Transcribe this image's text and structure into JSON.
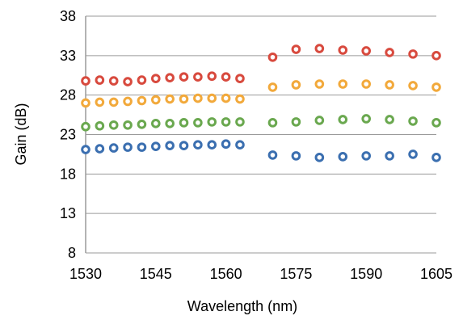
{
  "chart_data": {
    "type": "scatter",
    "title": "",
    "xlabel": "Wavelength (nm)",
    "ylabel": "Gain (dB)",
    "xlim": [
      1530,
      1605
    ],
    "ylim": [
      8,
      38
    ],
    "xticks": [
      1530,
      1545,
      1560,
      1575,
      1590,
      1605
    ],
    "yticks": [
      8,
      13,
      18,
      23,
      28,
      33,
      38
    ],
    "grid": "horizontal",
    "legend": "none",
    "x": [
      1530,
      1533,
      1536,
      1539,
      1542,
      1545,
      1548,
      1551,
      1554,
      1557,
      1560,
      1563,
      1570,
      1575,
      1580,
      1585,
      1590,
      1595,
      1600,
      1605
    ],
    "series": [
      {
        "color": "#d84a3e",
        "values": [
          29.8,
          29.9,
          29.8,
          29.7,
          29.9,
          30.1,
          30.2,
          30.3,
          30.3,
          30.4,
          30.3,
          30.1,
          32.8,
          33.8,
          33.9,
          33.7,
          33.6,
          33.4,
          33.2,
          33.0
        ]
      },
      {
        "color": "#f2a93b",
        "values": [
          27.0,
          27.1,
          27.1,
          27.2,
          27.3,
          27.4,
          27.5,
          27.5,
          27.6,
          27.6,
          27.6,
          27.5,
          29.0,
          29.3,
          29.4,
          29.4,
          29.4,
          29.3,
          29.2,
          29.0
        ]
      },
      {
        "color": "#6aa84f",
        "values": [
          24.0,
          24.1,
          24.2,
          24.2,
          24.3,
          24.4,
          24.4,
          24.5,
          24.5,
          24.6,
          24.6,
          24.6,
          24.5,
          24.6,
          24.8,
          24.9,
          25.0,
          24.9,
          24.7,
          24.5
        ]
      },
      {
        "color": "#3b6fb0",
        "values": [
          21.1,
          21.2,
          21.3,
          21.4,
          21.4,
          21.5,
          21.6,
          21.6,
          21.7,
          21.7,
          21.8,
          21.7,
          20.4,
          20.3,
          20.1,
          20.2,
          20.3,
          20.3,
          20.5,
          20.1
        ]
      }
    ]
  }
}
